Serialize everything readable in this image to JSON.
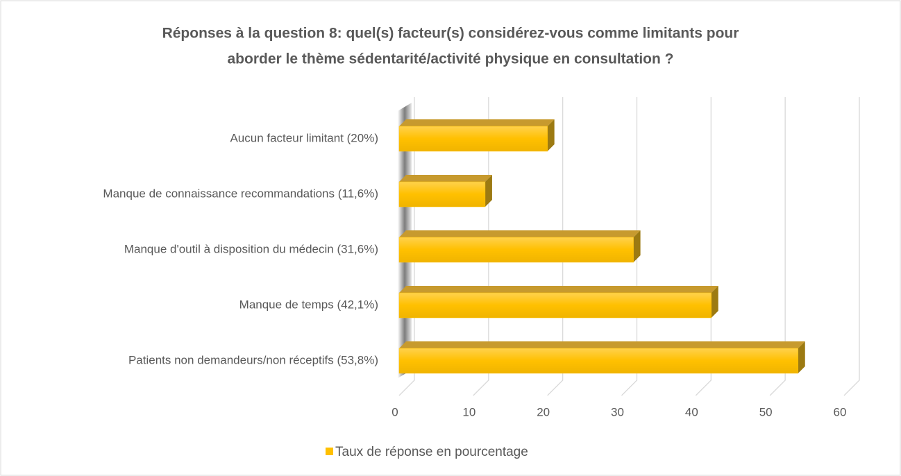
{
  "chart_data": {
    "type": "bar",
    "orientation": "horizontal",
    "title": [
      "Réponses à la question 8: quel(s) facteur(s) considérez-vous comme limitants pour",
      "aborder le thème sédentarité/activité physique en consultation ?"
    ],
    "categories": [
      "Aucun facteur limitant (20%)",
      "Manque de connaissance recommandations (11,6%)",
      "Manque d'outil à disposition du médecin (31,6%)",
      "Manque de temps (42,1%)",
      "Patients non demandeurs/non réceptifs (53,8%)"
    ],
    "series": [
      {
        "name": "Taux de réponse en pourcentage",
        "color": "#ffc000",
        "values": [
          20,
          11.6,
          31.6,
          42.1,
          53.8
        ]
      }
    ],
    "xlim": [
      0,
      60
    ],
    "xticks": [
      0,
      10,
      20,
      30,
      40,
      50,
      60
    ],
    "grid": true,
    "legend": "bottom"
  }
}
